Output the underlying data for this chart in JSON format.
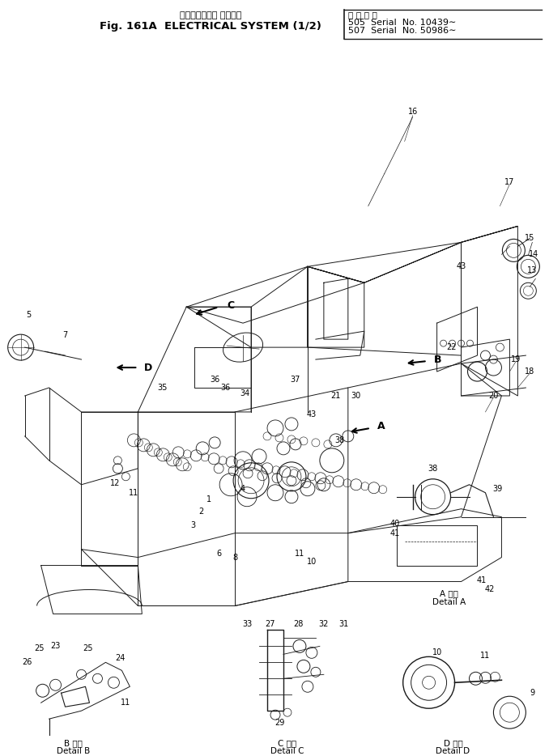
{
  "title_japanese": "エレクトリカル システム",
  "title_english": "Fig. 161A  ELECTRICAL SYSTEM (1/2)",
  "serial_label": "適 用 号 機",
  "serial_line1": "505  Serial  No. 10439∼",
  "serial_line2": "507  Serial  No. 50986∼",
  "bg_color": "#ffffff",
  "lc": "#1a1a1a",
  "figsize": [
    6.78,
    9.34
  ],
  "dpi": 100
}
